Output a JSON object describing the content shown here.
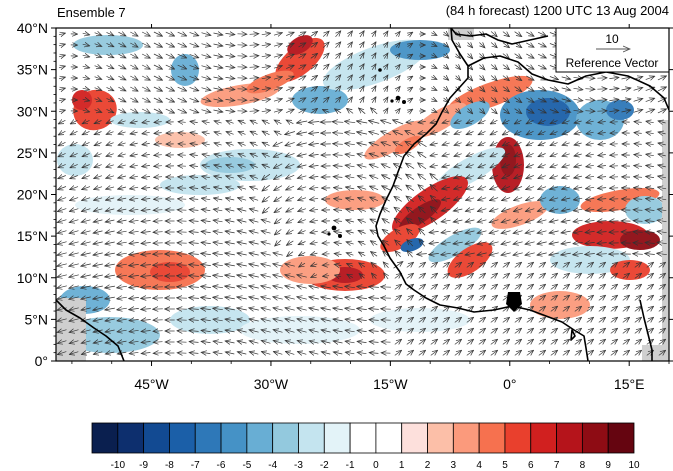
{
  "header": {
    "left_title": "Ensemble 7",
    "right_title": "(84 h forecast) 1200 UTC 13 Aug 2004"
  },
  "axes": {
    "lat_ticks": [
      "40°N",
      "35°N",
      "30°N",
      "25°N",
      "20°N",
      "15°N",
      "10°N",
      "5°N",
      "0°"
    ],
    "lon_ticks": [
      "45°W",
      "30°W",
      "15°W",
      "0°",
      "15°E"
    ],
    "lat_range": [
      0,
      40
    ],
    "lon_range": [
      -57,
      20
    ]
  },
  "reference_vector": {
    "magnitude": "10",
    "label": "Reference Vector"
  },
  "colorbar": {
    "labels": [
      "-10",
      "-9",
      "-8",
      "-7",
      "-6",
      "-5",
      "-4",
      "-3",
      "-2",
      "-1",
      "0",
      "1",
      "2",
      "3",
      "4",
      "5",
      "6",
      "7",
      "8",
      "9",
      "10"
    ],
    "colors": [
      "#0a1f4f",
      "#0d2f6e",
      "#124a92",
      "#1b5fa8",
      "#2e78b8",
      "#4592c6",
      "#68aed4",
      "#93c9de",
      "#c4e4ef",
      "#e3f3f8",
      "#ffffff",
      "#ffffff",
      "#fde0dc",
      "#fcbfa8",
      "#fb9a7c",
      "#f6714f",
      "#e9402d",
      "#d1201f",
      "#b5141b",
      "#8e0c14",
      "#650510"
    ]
  }
}
